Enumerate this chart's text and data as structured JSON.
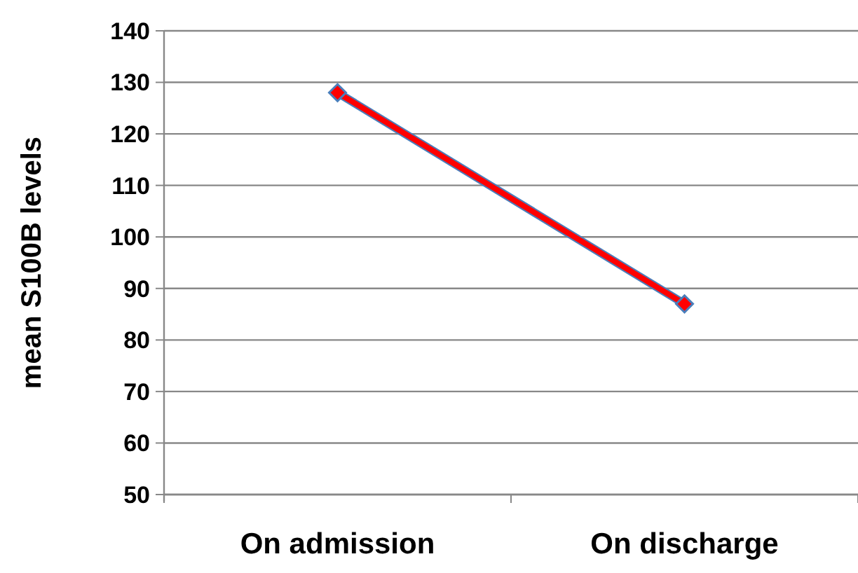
{
  "chart_data": {
    "type": "line",
    "ylabel": "mean S100B levels",
    "categories": [
      "On admission",
      "On discharge"
    ],
    "series": [
      {
        "color": "#ff0000",
        "values": [
          128,
          87
        ]
      }
    ],
    "ylim": [
      50,
      140
    ],
    "yticks": [
      50,
      60,
      70,
      80,
      90,
      100,
      110,
      120,
      130,
      140
    ],
    "grid": "y",
    "marker": "diamond",
    "line_style": "solid"
  }
}
